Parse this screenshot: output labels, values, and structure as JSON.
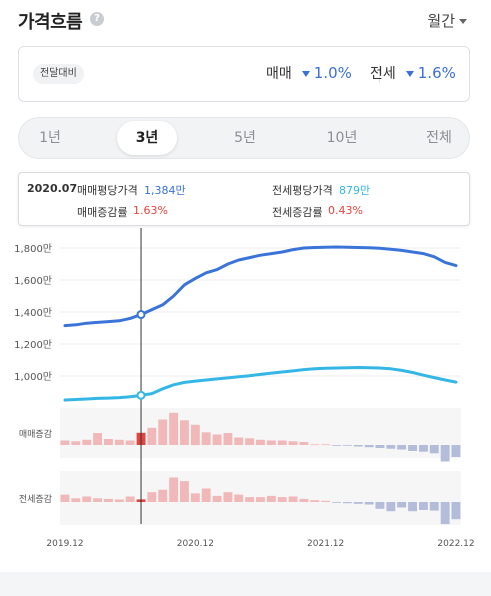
{
  "header": {
    "title": "가격흐름",
    "help_icon": "?",
    "period_label": "월간"
  },
  "summary": {
    "badge": "전달대비",
    "sale": {
      "label": "매매",
      "value": "1.0%"
    },
    "jeonse": {
      "label": "전세",
      "value": "1.6%"
    },
    "trend_color": "#3a6fd8"
  },
  "tabs": [
    "1년",
    "3년",
    "5년",
    "10년",
    "전체"
  ],
  "active_tab": "3년",
  "tooltip": {
    "date": "2020.07",
    "sale_price_label": "매매평당가격",
    "sale_price_value": "1,384만",
    "jeonse_price_label": "전세평당가격",
    "jeonse_price_value": "879만",
    "sale_change_label": "매매증감률",
    "sale_change_value": "1.63%",
    "jeonse_change_label": "전세증감률",
    "jeonse_change_value": "0.43%"
  },
  "chart_data": {
    "type": "line",
    "x_labels": [
      "2019.12",
      "2020.12",
      "2021.12",
      "2022.12"
    ],
    "y_ticks": [
      "1,800만",
      "1,600만",
      "1,400만",
      "1,200만",
      "1,000만"
    ],
    "ylim": [
      800,
      1850
    ],
    "x": [
      "2019.12",
      "2020.01",
      "2020.02",
      "2020.03",
      "2020.04",
      "2020.05",
      "2020.06",
      "2020.07",
      "2020.08",
      "2020.09",
      "2020.10",
      "2020.11",
      "2020.12",
      "2021.01",
      "2021.02",
      "2021.03",
      "2021.04",
      "2021.05",
      "2021.06",
      "2021.07",
      "2021.08",
      "2021.09",
      "2021.10",
      "2021.11",
      "2021.12",
      "2022.01",
      "2022.02",
      "2022.03",
      "2022.04",
      "2022.05",
      "2022.06",
      "2022.07",
      "2022.08",
      "2022.09",
      "2022.10",
      "2022.11",
      "2022.12"
    ],
    "series": [
      {
        "name": "매매",
        "color": "#3a74d9",
        "values": [
          1315,
          1320,
          1330,
          1335,
          1340,
          1345,
          1360,
          1384,
          1415,
          1445,
          1500,
          1570,
          1610,
          1645,
          1665,
          1700,
          1725,
          1740,
          1755,
          1765,
          1775,
          1790,
          1800,
          1803,
          1805,
          1806,
          1805,
          1803,
          1802,
          1798,
          1792,
          1785,
          1775,
          1765,
          1745,
          1710,
          1690
        ]
      },
      {
        "name": "전세",
        "color": "#35b7e6",
        "values": [
          850,
          853,
          856,
          860,
          862,
          865,
          870,
          879,
          890,
          920,
          945,
          960,
          968,
          975,
          982,
          988,
          995,
          1002,
          1010,
          1018,
          1025,
          1032,
          1040,
          1045,
          1048,
          1050,
          1052,
          1053,
          1052,
          1050,
          1045,
          1035,
          1022,
          1005,
          990,
          975,
          962
        ]
      }
    ],
    "sub_charts": [
      {
        "name": "매매증감",
        "highlight_index": 7,
        "values": [
          0.6,
          0.5,
          0.7,
          1.6,
          0.8,
          0.7,
          0.6,
          1.63,
          2.3,
          3.4,
          4.3,
          3.3,
          2.7,
          1.7,
          1.4,
          1.6,
          1.0,
          0.9,
          0.7,
          0.6,
          0.6,
          0.5,
          0.4,
          0.1,
          0.1,
          -0.1,
          -0.1,
          -0.2,
          -0.3,
          -0.4,
          -0.5,
          -0.6,
          -0.8,
          -0.9,
          -1.1,
          -2.2,
          -1.6
        ]
      },
      {
        "name": "전세증감",
        "highlight_index": 7,
        "values": [
          1.2,
          0.6,
          0.9,
          0.6,
          0.5,
          0.4,
          0.9,
          0.43,
          1.6,
          2.0,
          4.0,
          3.4,
          1.4,
          2.2,
          1.0,
          1.6,
          1.2,
          0.8,
          0.8,
          1.0,
          0.8,
          0.9,
          0.5,
          0.3,
          0.2,
          -0.1,
          -0.2,
          -0.3,
          -0.4,
          -1.1,
          -1.5,
          -0.9,
          -1.5,
          -1.3,
          -1.4,
          -3.6,
          -2.8
        ]
      }
    ],
    "pos_color": "#f0b8b8",
    "pos_highlight_color": "#e0443c",
    "neg_color": "#b3bcd9",
    "grid": true
  }
}
